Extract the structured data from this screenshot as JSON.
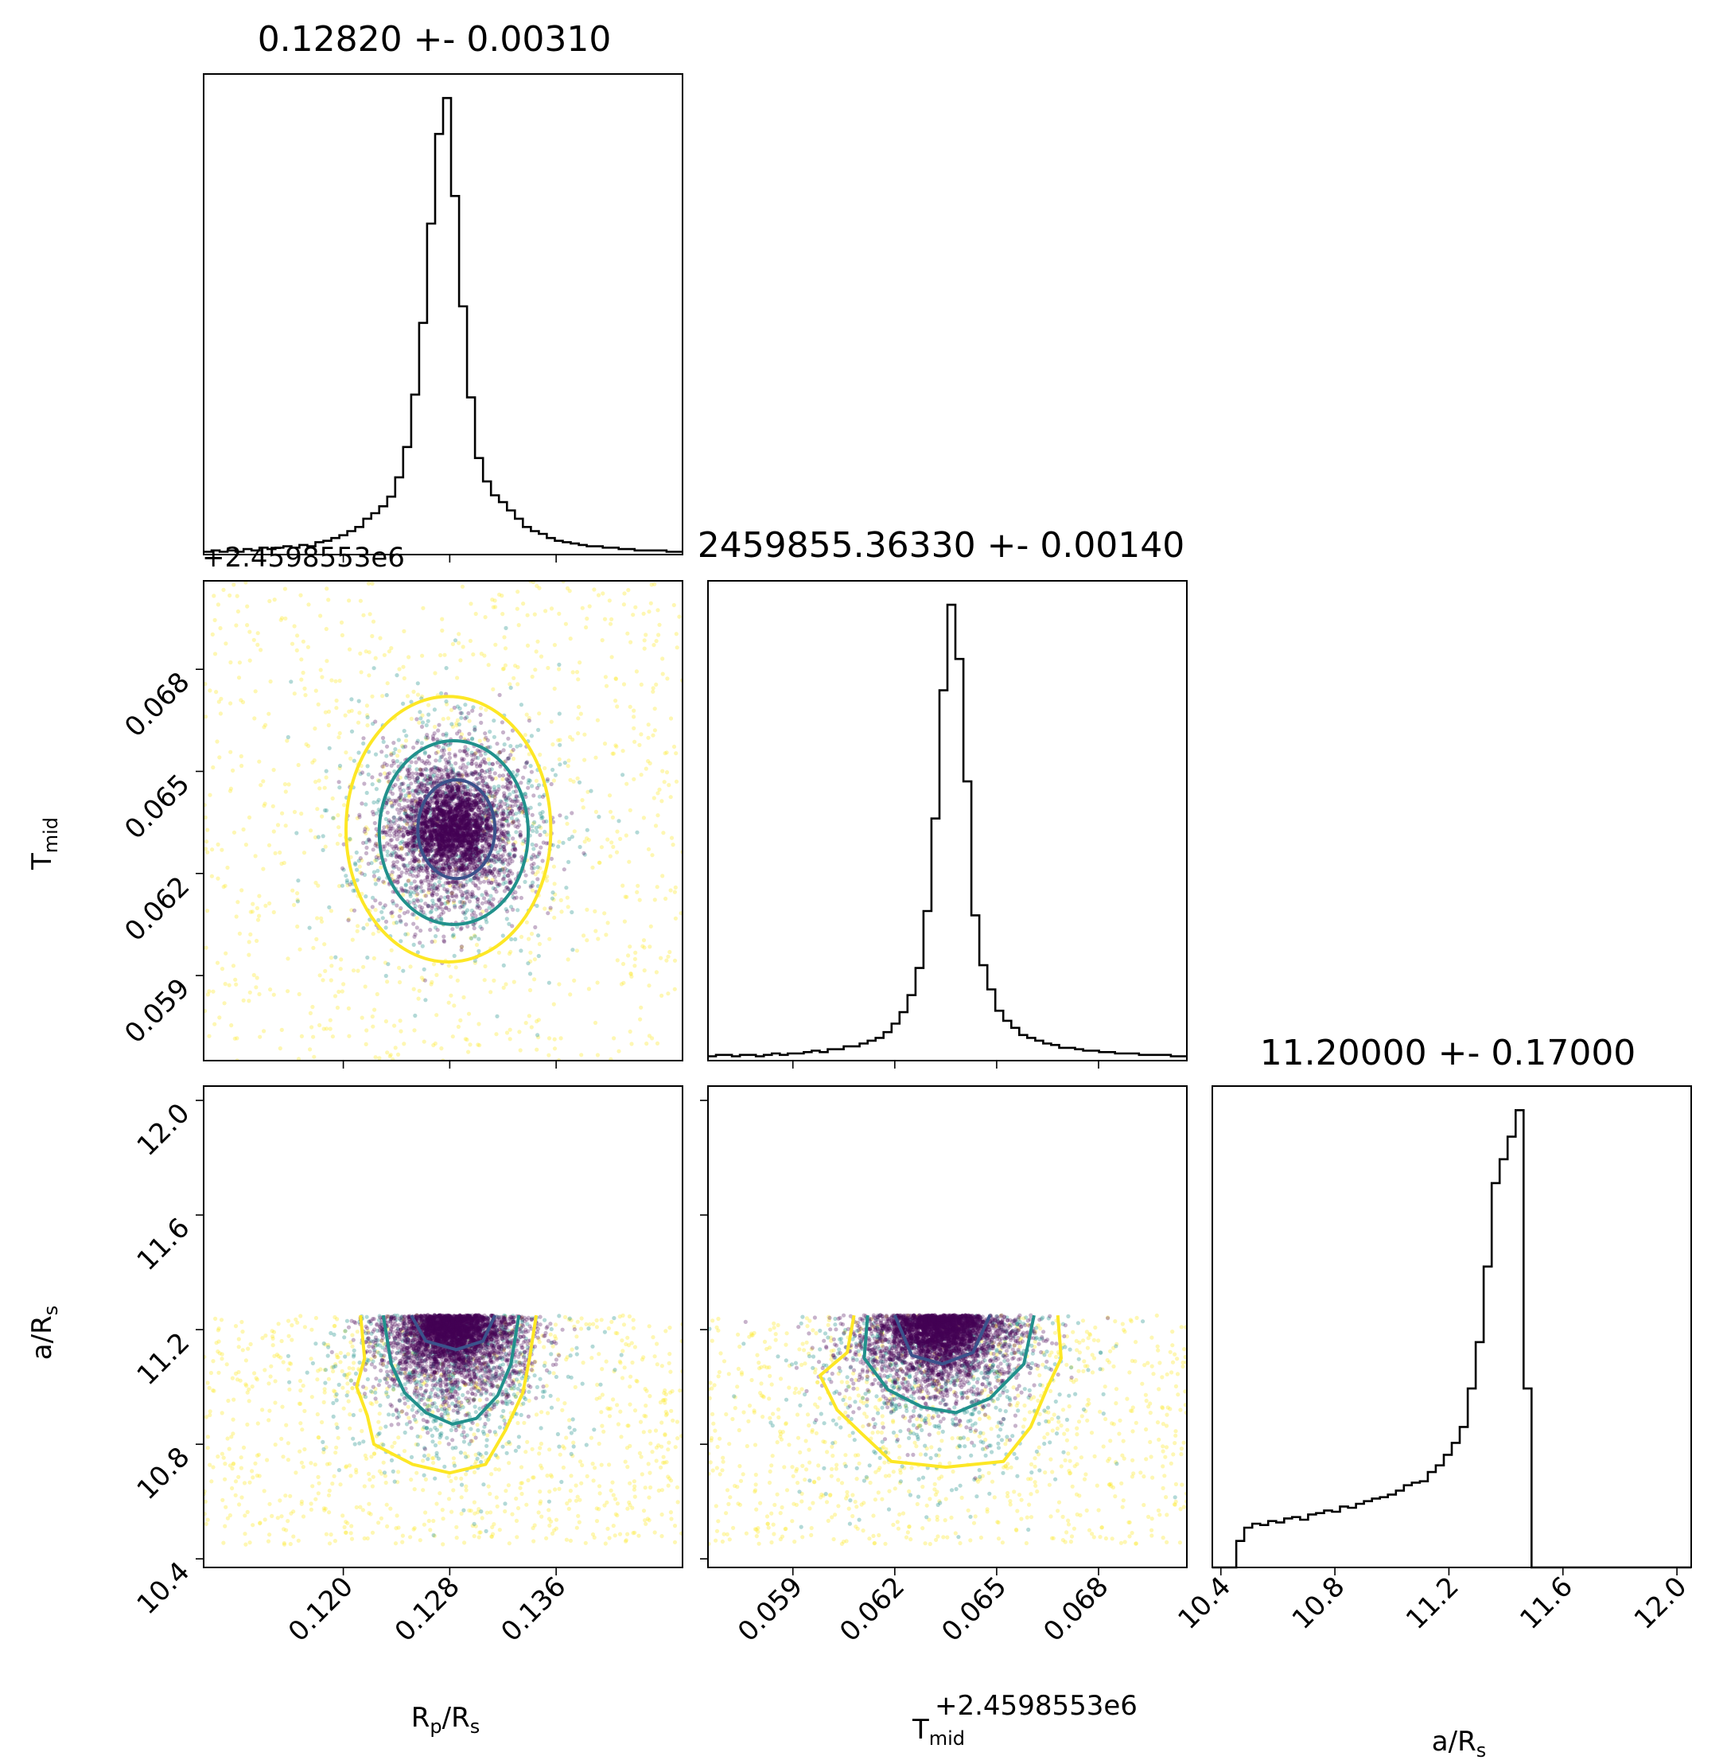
{
  "colors": {
    "inner_contour": "#3b528b",
    "middle_contour": "#21918c",
    "outer_contour": "#fde725",
    "point_core": "#440154",
    "histogram": "#000000"
  },
  "chart_data": {
    "type": "corner",
    "parameters": [
      {
        "key": "rp",
        "label_main": "R",
        "label_sub": "p",
        "label_rest": "/R",
        "label_sub2": "s",
        "range": [
          0.1095,
          0.1455
        ],
        "ticks": [
          "0.120",
          "0.128",
          "0.136"
        ],
        "tick_values": [
          0.12,
          0.128,
          0.136
        ],
        "title": "0.12820 +- 0.00310",
        "mean": 0.1282,
        "sigma": 0.0031
      },
      {
        "key": "tmid",
        "label_main": "T",
        "label_sub": "mid",
        "offset_text": "+2.4598553e6",
        "range": [
          0.0565,
          0.0706
        ],
        "ticks": [
          "0.059",
          "0.062",
          "0.065",
          "0.068"
        ],
        "tick_values": [
          0.059,
          0.062,
          0.065,
          0.068
        ],
        "title": "2459855.36330 +- 0.00140",
        "mean": 0.0633,
        "sigma": 0.0014
      },
      {
        "key": "ars",
        "label_main": "a/R",
        "label_sub": "s",
        "range": [
          10.37,
          12.05
        ],
        "ticks": [
          "10.4",
          "10.8",
          "11.2",
          "11.6",
          "12.0"
        ],
        "tick_values": [
          10.4,
          10.8,
          11.2,
          11.6,
          12.0
        ],
        "title": "11.20000 +- 0.17000",
        "mean": 11.2,
        "sigma": 0.17
      }
    ],
    "histograms": {
      "rp": [
        0.2,
        0.3,
        0.2,
        0.3,
        0.2,
        0.4,
        0.3,
        0.5,
        0.4,
        0.5,
        0.6,
        0.5,
        0.7,
        0.6,
        0.9,
        1.0,
        1.2,
        1.4,
        1.7,
        2.0,
        2.6,
        3.0,
        3.5,
        4.2,
        5.6,
        7.8,
        11.6,
        16.8,
        24.0,
        30.5,
        33.1,
        26.0,
        18.0,
        11.4,
        7.0,
        5.3,
        4.3,
        3.8,
        3.2,
        2.6,
        2.0,
        1.7,
        1.5,
        1.2,
        1.0,
        0.9,
        0.8,
        0.7,
        0.6,
        0.6,
        0.5,
        0.5,
        0.4,
        0.4,
        0.3,
        0.3,
        0.3,
        0.3,
        0.2,
        0.2
      ],
      "tmid": [
        0.3,
        0.4,
        0.4,
        0.3,
        0.4,
        0.4,
        0.3,
        0.4,
        0.5,
        0.4,
        0.5,
        0.5,
        0.6,
        0.7,
        0.6,
        0.8,
        0.8,
        1.0,
        1.0,
        1.2,
        1.4,
        1.6,
        2.0,
        2.6,
        3.4,
        4.6,
        6.5,
        10.5,
        17.0,
        26.0,
        32.0,
        28.2,
        19.6,
        10.2,
        6.7,
        5.0,
        3.5,
        2.8,
        2.3,
        1.8,
        1.6,
        1.4,
        1.2,
        1.1,
        0.9,
        0.9,
        0.8,
        0.7,
        0.7,
        0.6,
        0.6,
        0.5,
        0.5,
        0.5,
        0.4,
        0.4,
        0.4,
        0.4,
        0.3,
        0.3
      ],
      "ars": [
        0,
        0,
        0,
        2.0,
        3.0,
        3.3,
        3.2,
        3.5,
        3.4,
        3.7,
        3.8,
        3.6,
        4.0,
        4.1,
        4.3,
        4.2,
        4.6,
        4.5,
        4.8,
        5.0,
        5.2,
        5.3,
        5.5,
        5.8,
        6.2,
        6.4,
        6.5,
        7.2,
        7.7,
        8.5,
        9.4,
        10.6,
        13.5,
        17.0,
        22.7,
        29.0,
        30.8,
        32.5,
        34.5,
        13.5,
        0,
        0,
        0,
        0,
        0,
        0,
        0,
        0,
        0,
        0,
        0,
        0,
        0,
        0,
        0,
        0,
        0,
        0,
        0,
        0
      ]
    },
    "contours": {
      "levels": [
        "inner",
        "middle",
        "outer"
      ],
      "rp_tmid": [
        {
          "level": "inner",
          "cx": 0.1285,
          "cy": 0.0633,
          "rx": 0.0029,
          "ry": 0.00145
        },
        {
          "level": "middle",
          "cx": 0.1283,
          "cy": 0.0632,
          "rx": 0.0056,
          "ry": 0.0027
        },
        {
          "level": "outer",
          "cx": 0.1279,
          "cy": 0.0633,
          "rx": 0.0077,
          "ry": 0.0039
        }
      ],
      "rp_ars": {
        "inner": [
          [
            0.1251,
            11.25
          ],
          [
            0.1262,
            11.16
          ],
          [
            0.1285,
            11.13
          ],
          [
            0.1305,
            11.16
          ],
          [
            0.1314,
            11.25
          ]
        ],
        "middle": [
          [
            0.123,
            11.25
          ],
          [
            0.1236,
            11.08
          ],
          [
            0.1246,
            10.98
          ],
          [
            0.1262,
            10.91
          ],
          [
            0.1282,
            10.87
          ],
          [
            0.13,
            10.89
          ],
          [
            0.1316,
            10.97
          ],
          [
            0.1326,
            11.08
          ],
          [
            0.1332,
            11.25
          ]
        ],
        "outer": [
          [
            0.1213,
            11.25
          ],
          [
            0.1216,
            11.1
          ],
          [
            0.121,
            11.0
          ],
          [
            0.1218,
            10.9
          ],
          [
            0.1223,
            10.8
          ],
          [
            0.1252,
            10.73
          ],
          [
            0.128,
            10.7
          ],
          [
            0.1307,
            10.73
          ],
          [
            0.1322,
            10.85
          ],
          [
            0.1335,
            10.98
          ],
          [
            0.134,
            11.1
          ],
          [
            0.1345,
            11.25
          ]
        ]
      },
      "tmid_ars": {
        "inner": [
          [
            0.062,
            11.25
          ],
          [
            0.0625,
            11.11
          ],
          [
            0.0634,
            11.08
          ],
          [
            0.0643,
            11.12
          ],
          [
            0.0648,
            11.25
          ]
        ],
        "middle": [
          [
            0.0612,
            11.25
          ],
          [
            0.0611,
            11.1
          ],
          [
            0.0618,
            10.99
          ],
          [
            0.0628,
            10.93
          ],
          [
            0.0638,
            10.91
          ],
          [
            0.0648,
            10.96
          ],
          [
            0.0658,
            11.08
          ],
          [
            0.0661,
            11.25
          ]
        ],
        "outer": [
          [
            0.0608,
            11.25
          ],
          [
            0.0606,
            11.12
          ],
          [
            0.0598,
            11.04
          ],
          [
            0.0603,
            10.92
          ],
          [
            0.061,
            10.84
          ],
          [
            0.0619,
            10.74
          ],
          [
            0.0635,
            10.72
          ],
          [
            0.0652,
            10.74
          ],
          [
            0.066,
            10.86
          ],
          [
            0.0665,
            11.0
          ],
          [
            0.0669,
            11.1
          ],
          [
            0.0668,
            11.25
          ]
        ]
      }
    }
  }
}
